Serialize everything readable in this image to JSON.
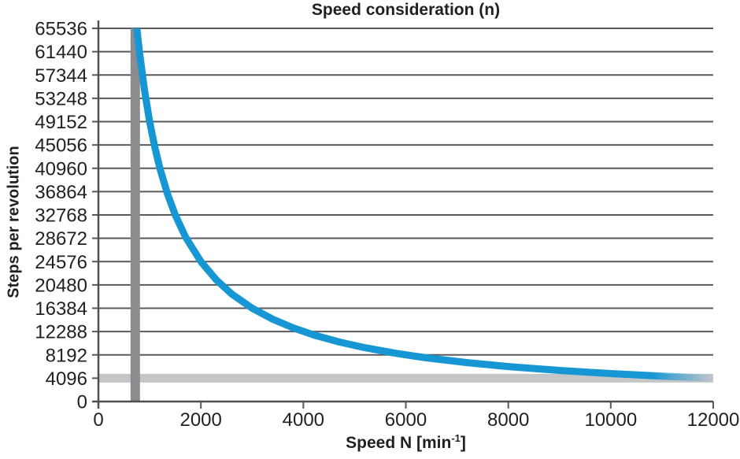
{
  "chart_data": {
    "type": "line",
    "title": "Speed consideration (n)",
    "ylabel": "Steps per revolution",
    "xlabel": {
      "prefix": "Speed N [min",
      "sup": "-1",
      "suffix": "]"
    },
    "xlim": [
      0,
      12000
    ],
    "ylim": [
      0,
      65536
    ],
    "x_ticks": [
      0,
      2000,
      4000,
      6000,
      8000,
      10000,
      12000
    ],
    "y_ticks": [
      0,
      4096,
      8192,
      12288,
      16384,
      20480,
      24576,
      28672,
      32768,
      36864,
      40960,
      45056,
      49152,
      53248,
      57344,
      61440,
      65536
    ],
    "grid": "horizontal",
    "legend": "none",
    "series": [
      {
        "name": "steps_per_revolution_vs_speed",
        "color": "#1697d3",
        "points": [
          [
            750,
            65536
          ],
          [
            800,
            61440
          ],
          [
            900,
            54613
          ],
          [
            1000,
            49152
          ],
          [
            1100,
            44684
          ],
          [
            1200,
            40960
          ],
          [
            1350,
            36409
          ],
          [
            1500,
            32768
          ],
          [
            1700,
            28913
          ],
          [
            2000,
            24576
          ],
          [
            2300,
            21370
          ],
          [
            2600,
            18905
          ],
          [
            3000,
            16384
          ],
          [
            3400,
            14456
          ],
          [
            3800,
            12935
          ],
          [
            4200,
            11703
          ],
          [
            4700,
            10458
          ],
          [
            5200,
            9452
          ],
          [
            5800,
            8475
          ],
          [
            6400,
            7680
          ],
          [
            7200,
            6827
          ],
          [
            8000,
            6144
          ],
          [
            9000,
            5461
          ],
          [
            10000,
            4915
          ],
          [
            11000,
            4468
          ],
          [
            12000,
            4096
          ]
        ]
      }
    ],
    "markers": {
      "vertical_bar": {
        "x": 750,
        "color": "#8a8c8f"
      },
      "horizontal_bar": {
        "y": 4096,
        "color": "#c5c6c8"
      }
    },
    "colors": {
      "gridline": "#58595b",
      "axis": "#4f5052",
      "text": "#231f20",
      "background": "#ffffff"
    }
  }
}
